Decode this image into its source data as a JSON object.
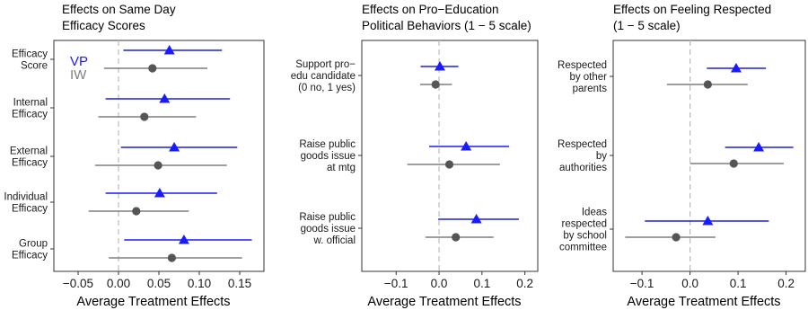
{
  "colors": {
    "vp": "#1a1aff",
    "iw": "#7f7f7f",
    "axis": "#333333",
    "zero_line": "#bbbbbb"
  },
  "chart_data": [
    {
      "type": "scatter",
      "title": "Effects on Same Day\nEfficacy Scores",
      "xlabel": "Average Treatment Effects",
      "xlim": [
        -0.08,
        0.18
      ],
      "xticks": [
        -0.05,
        0.0,
        0.05,
        0.1,
        0.15
      ],
      "xtick_labels": [
        "−0.05",
        "0.00",
        "0.05",
        "0.10",
        "0.15"
      ],
      "zero_line": 0,
      "legend": {
        "position": "top-left",
        "entries": [
          {
            "name": "VP",
            "marker": "triangle"
          },
          {
            "name": "IW",
            "marker": "circle"
          }
        ]
      },
      "categories": [
        "Efficacy\nScore",
        "Internal\nEfficacy",
        "External\nEfficacy",
        "Individual\nEfficacy",
        "Group\nEfficacy"
      ],
      "series": [
        {
          "name": "VP",
          "marker": "triangle",
          "estimate": [
            0.063,
            0.057,
            0.069,
            0.051,
            0.081
          ],
          "ci_low": [
            0.006,
            -0.016,
            0.003,
            -0.016,
            0.007
          ],
          "ci_high": [
            0.128,
            0.138,
            0.147,
            0.122,
            0.165
          ]
        },
        {
          "name": "IW",
          "marker": "circle",
          "estimate": [
            0.042,
            0.032,
            0.049,
            0.022,
            0.066
          ],
          "ci_low": [
            -0.018,
            -0.025,
            -0.029,
            -0.037,
            -0.012
          ],
          "ci_high": [
            0.11,
            0.096,
            0.134,
            0.087,
            0.153
          ]
        }
      ]
    },
    {
      "type": "scatter",
      "title": "Effects on Pro−Education\nPolitical Behaviors (1 − 5 scale)",
      "xlabel": "Average Treatment Effects",
      "xlim": [
        -0.18,
        0.23
      ],
      "xticks": [
        -0.1,
        0.0,
        0.1,
        0.2
      ],
      "xtick_labels": [
        "−0.1",
        "0.0",
        "0.1",
        "0.2"
      ],
      "zero_line": 0,
      "categories": [
        "Support pro−\nedu candidate\n(0 no, 1 yes)",
        "Raise public\ngoods issue\nat mtg",
        "Raise public\ngoods issue\nw. official"
      ],
      "series": [
        {
          "name": "VP",
          "marker": "triangle",
          "estimate": [
            0.002,
            0.063,
            0.087
          ],
          "ci_low": [
            -0.043,
            -0.023,
            -0.002
          ],
          "ci_high": [
            0.045,
            0.163,
            0.186
          ]
        },
        {
          "name": "IW",
          "marker": "circle",
          "estimate": [
            -0.008,
            0.024,
            0.039
          ],
          "ci_low": [
            -0.044,
            -0.074,
            -0.032
          ],
          "ci_high": [
            0.03,
            0.142,
            0.127
          ]
        }
      ]
    },
    {
      "type": "scatter",
      "title": "Effects on Feeling Respected\n(1 − 5 scale)",
      "xlabel": "Average Treatment Effects",
      "xlim": [
        -0.16,
        0.24
      ],
      "xticks": [
        -0.1,
        0.0,
        0.1,
        0.2
      ],
      "xtick_labels": [
        "−0.1",
        "0.0",
        "0.1",
        "0.2"
      ],
      "zero_line": 0,
      "categories": [
        "Respected\nby other\nparents",
        "Respected\nby\nauthorities",
        "Ideas\nrespected\nby school\ncommittee"
      ],
      "series": [
        {
          "name": "VP",
          "marker": "triangle",
          "estimate": [
            0.096,
            0.143,
            0.037
          ],
          "ci_low": [
            0.035,
            0.073,
            -0.094
          ],
          "ci_high": [
            0.158,
            0.215,
            0.164
          ]
        },
        {
          "name": "IW",
          "marker": "circle",
          "estimate": [
            0.037,
            0.091,
            -0.029
          ],
          "ci_low": [
            -0.048,
            0.0,
            -0.135
          ],
          "ci_high": [
            0.12,
            0.195,
            0.053
          ]
        }
      ]
    }
  ]
}
